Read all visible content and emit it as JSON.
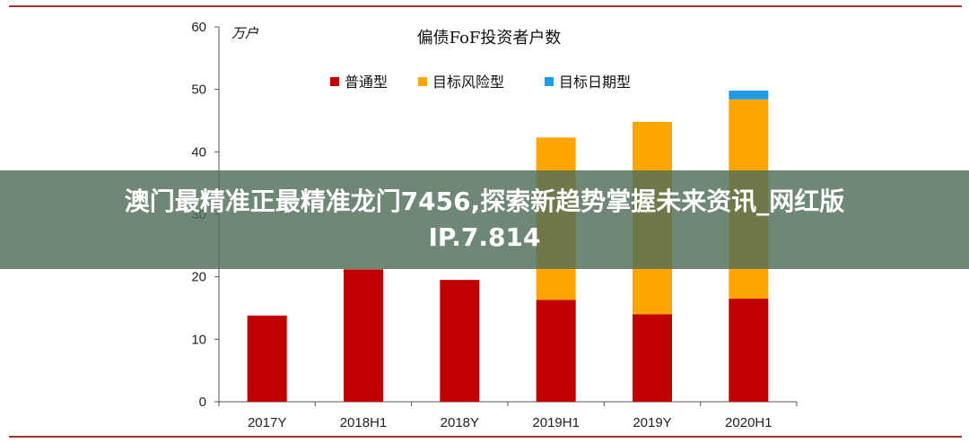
{
  "chart_data": {
    "type": "bar",
    "stacked": true,
    "title": "偏债FoF投资者户数",
    "unit": "万户",
    "categories": [
      "2017Y",
      "2018H1",
      "2018Y",
      "2019H1",
      "2019Y",
      "2020H1"
    ],
    "ylim": [
      0,
      60
    ],
    "yticks": [
      0,
      10,
      20,
      30,
      40,
      50,
      60
    ],
    "grid": false,
    "legend_position": "top",
    "series": [
      {
        "name": "普通型",
        "color": "#c00000",
        "values": [
          13.8,
          21.2,
          19.5,
          16.3,
          14.0,
          16.5
        ]
      },
      {
        "name": "目标风险型",
        "color": "#ffa500",
        "values": [
          0,
          0,
          0,
          26.0,
          30.8,
          31.9
        ]
      },
      {
        "name": "目标日期型",
        "color": "#1e9be8",
        "values": [
          0,
          0,
          0,
          0,
          0,
          1.4
        ]
      }
    ]
  },
  "banner": {
    "line1": "澳门最精准正最精准龙门7456,探索新趋势掌握未来资讯_网红版",
    "line2": "IP.7.814"
  }
}
